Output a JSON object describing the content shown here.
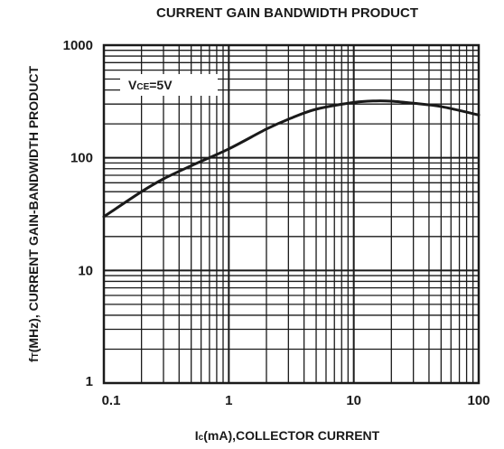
{
  "chart_data": {
    "type": "line",
    "title": "CURRENT GAIN BANDWIDTH PRODUCT",
    "xlabel_prefix": "I",
    "xlabel_sub": "c",
    "xlabel_rest": "(mA),COLLECTOR CURRENT",
    "ylabel_prefix": "f",
    "ylabel_sub": "T",
    "ylabel_rest": "(MHz), CURRENT GAIN-BANDWIDTH PRODUCT",
    "x_scale": "log",
    "y_scale": "log",
    "xlim": [
      0.1,
      100
    ],
    "ylim": [
      1,
      1000
    ],
    "x_ticks": [
      {
        "value": 0.1,
        "label": "0.1"
      },
      {
        "value": 1,
        "label": "1"
      },
      {
        "value": 10,
        "label": "10"
      },
      {
        "value": 100,
        "label": "100"
      }
    ],
    "y_ticks": [
      {
        "value": 1,
        "label": "1"
      },
      {
        "value": 10,
        "label": "10"
      },
      {
        "value": 100,
        "label": "100"
      },
      {
        "value": 1000,
        "label": "1000"
      }
    ],
    "grid": true,
    "annotation": {
      "prefix": "V",
      "sub": "CE",
      "rest": "=5V"
    },
    "series": [
      {
        "x": [
          0.1,
          0.2,
          0.3,
          0.5,
          1,
          2,
          3,
          5,
          10,
          15,
          20,
          30,
          50,
          100
        ],
        "y": [
          30,
          50,
          65,
          85,
          120,
          180,
          220,
          270,
          310,
          320,
          318,
          305,
          285,
          240
        ]
      }
    ]
  },
  "colors": {
    "line": "#1a1a1a",
    "grid": "#1a1a1a",
    "background": "#ffffff"
  }
}
